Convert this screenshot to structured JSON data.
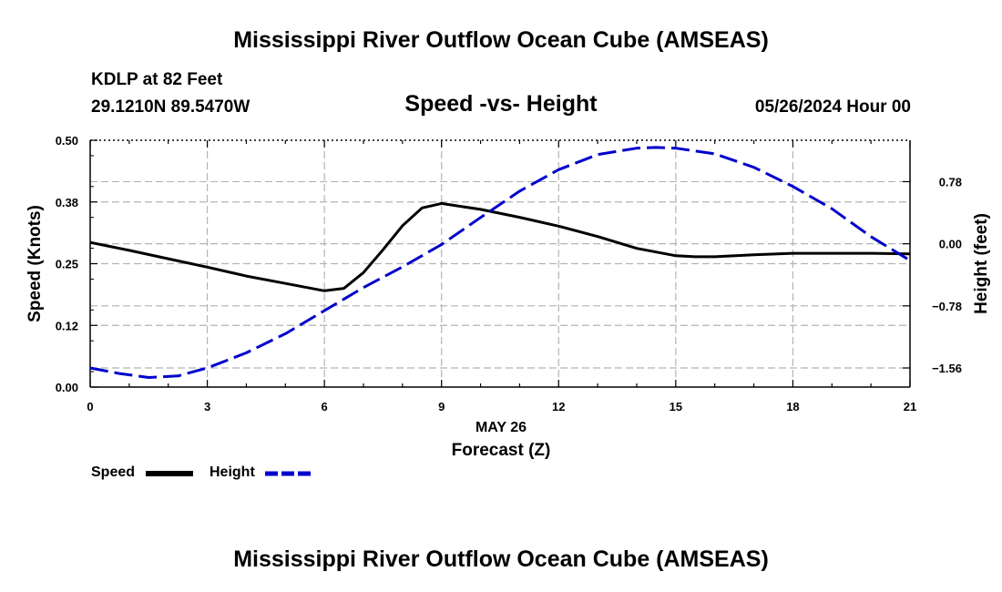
{
  "header": {
    "title": "Mississippi River Outflow Ocean Cube (AMSEAS)",
    "station": "KDLP at 82 Feet",
    "coords": "29.1210N  89.5470W",
    "subtitle": "Speed -vs- Height",
    "date": "05/26/2024 Hour 00"
  },
  "footer": {
    "title": "Mississippi River Outflow Ocean Cube (AMSEAS)"
  },
  "legend": {
    "items": [
      {
        "label": "Speed",
        "color": "#000000",
        "style": "solid"
      },
      {
        "label": "Height",
        "color": "#0000cc",
        "style": "dashed"
      }
    ]
  },
  "chart_data": {
    "type": "line",
    "x_date_label": "MAY 26",
    "xlabel": "Forecast (Z)",
    "ylabel_left": "Speed (Knots)",
    "ylabel_right": "Height (feet)",
    "xlim": [
      0,
      21
    ],
    "x_ticks": [
      0,
      3,
      6,
      9,
      12,
      15,
      18,
      21
    ],
    "ylim_left": [
      0,
      0.5
    ],
    "y_ticks_left": [
      0.0,
      0.125,
      0.25,
      0.375,
      0.5
    ],
    "y_tick_labels_left": [
      "0.00",
      "0.12",
      "0.25",
      "0.38",
      "0.50"
    ],
    "ylim_right": [
      -1.8,
      1.3
    ],
    "y_ticks_right": [
      -1.56,
      -0.78,
      0.0,
      0.78
    ],
    "y_tick_labels_right": [
      "−1.56",
      "−0.78",
      "0.00",
      "0.78"
    ],
    "grid": true,
    "series": [
      {
        "name": "Speed",
        "axis": "left",
        "color": "#000000",
        "dash": "solid",
        "x": [
          0,
          1,
          2,
          3,
          4,
          5,
          6,
          6.5,
          7,
          7.5,
          8,
          8.5,
          9,
          10,
          11,
          12,
          13,
          14,
          15,
          15.5,
          16,
          17,
          18,
          19,
          20,
          21
        ],
        "values": [
          0.293,
          0.277,
          0.26,
          0.243,
          0.225,
          0.21,
          0.195,
          0.2,
          0.232,
          0.278,
          0.327,
          0.363,
          0.372,
          0.36,
          0.344,
          0.326,
          0.305,
          0.281,
          0.266,
          0.264,
          0.264,
          0.268,
          0.271,
          0.271,
          0.271,
          0.27
        ]
      },
      {
        "name": "Height",
        "axis": "right",
        "color": "#0000cc",
        "dash": "dashed",
        "x": [
          0,
          0.75,
          1.5,
          2.25,
          3,
          4,
          5,
          6,
          7,
          8,
          9,
          10,
          11,
          12,
          13,
          14,
          14.5,
          15,
          16,
          17,
          18,
          19,
          20,
          21
        ],
        "values": [
          -1.56,
          -1.63,
          -1.68,
          -1.66,
          -1.56,
          -1.37,
          -1.13,
          -0.84,
          -0.55,
          -0.29,
          -0.01,
          0.33,
          0.66,
          0.93,
          1.12,
          1.2,
          1.21,
          1.2,
          1.13,
          0.96,
          0.72,
          0.44,
          0.09,
          -0.21
        ]
      }
    ]
  }
}
